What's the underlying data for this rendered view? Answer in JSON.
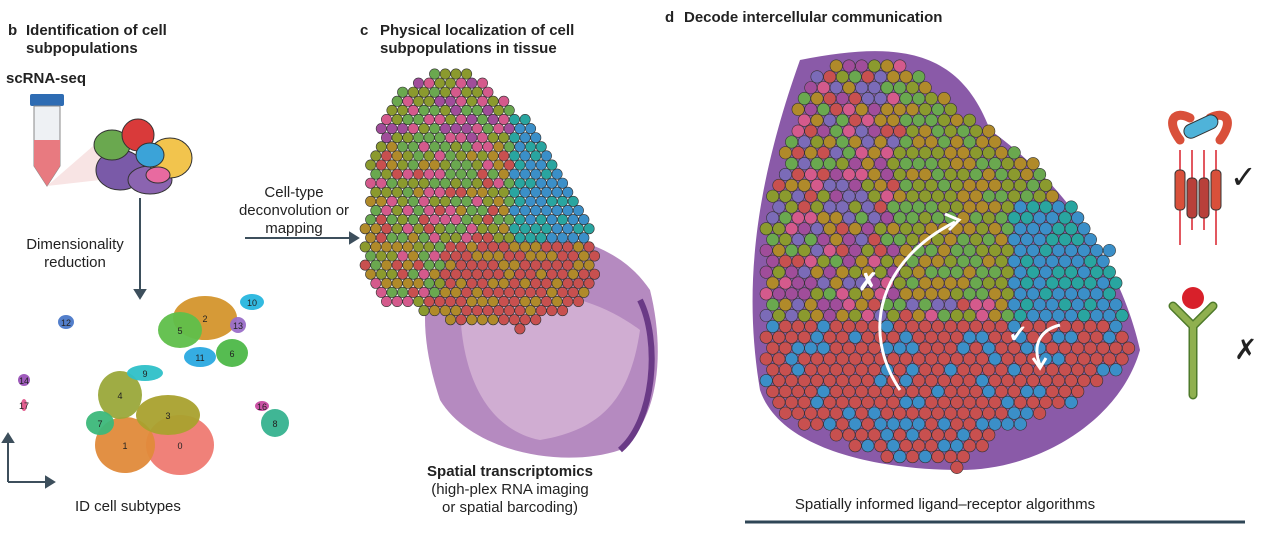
{
  "panel_b": {
    "letter": "b",
    "title": "Identification of cell subpopulations",
    "method": "scRNA-seq",
    "step": "Dimensionality reduction",
    "footer": "ID cell subtypes",
    "clusters": [
      "0",
      "1",
      "2",
      "3",
      "4",
      "5",
      "6",
      "7",
      "8",
      "9",
      "10",
      "11",
      "12",
      "13",
      "14",
      "16",
      "17"
    ]
  },
  "arrow_label": "Cell-type deconvolution or mapping",
  "panel_c": {
    "letter": "c",
    "title": "Physical localization of cell subpopulations in tissue",
    "caption_title": "Spatial transcriptomics",
    "caption_sub": "(high-plex RNA imaging or spatial barcoding)"
  },
  "panel_d": {
    "letter": "d",
    "title": "Decode intercellular communication",
    "caption": "Spatially informed ligand–receptor algorithms",
    "mark_check": "✓",
    "mark_cross": "✗"
  },
  "colors": {
    "spots": [
      "#c8504f",
      "#b08a2a",
      "#8b9a2e",
      "#6aa84f",
      "#3b8fc8",
      "#29a5a0",
      "#a04d9a",
      "#d45a8c",
      "#7b6bb8",
      "#d88a3a"
    ],
    "tissue": "#8a5aa8",
    "text_accent": "#2f4656"
  }
}
